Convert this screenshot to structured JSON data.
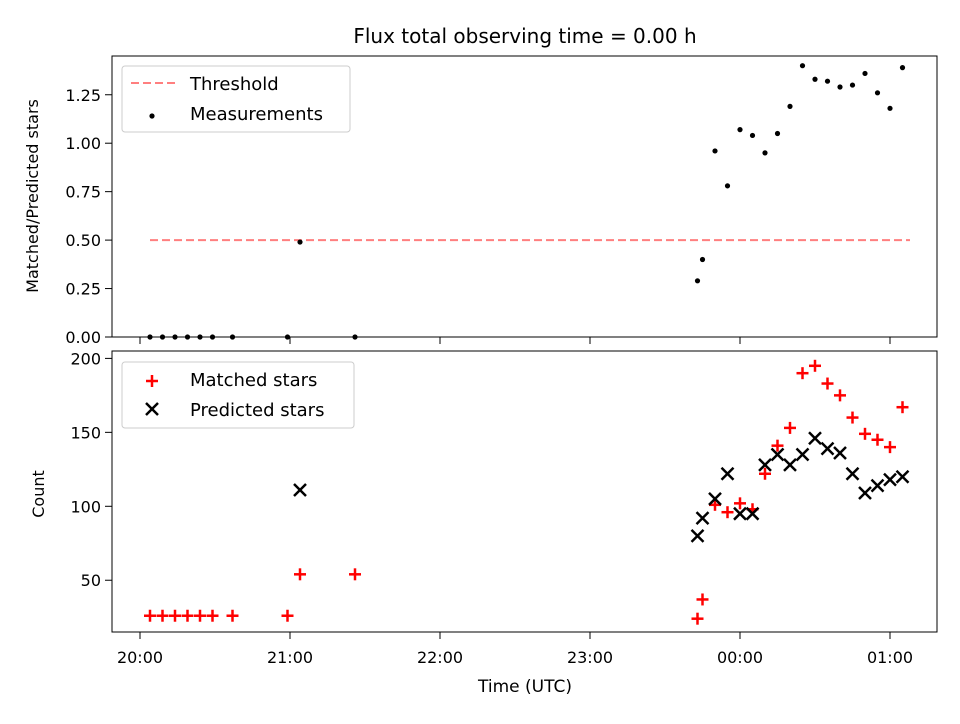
{
  "chart_data": {
    "type": "scatter",
    "title": "Flux total observing time = 0.00 h",
    "xlabel": "Time (UTC)",
    "x_ticks": [
      "20:00",
      "21:00",
      "22:00",
      "23:00",
      "00:00",
      "01:00"
    ],
    "panels": [
      {
        "ylabel": "Matched/Predicted stars",
        "ylim": [
          0,
          1.45
        ],
        "y_ticks": [
          "0.00",
          "0.25",
          "0.50",
          "0.75",
          "1.00",
          "1.25"
        ],
        "legend_position": "upper-left",
        "threshold": {
          "name": "Threshold",
          "value": 0.5,
          "x_range": [
            "20:04",
            "01:08"
          ],
          "color": "#ff7f7f"
        },
        "series": [
          {
            "name": "Measurements",
            "marker": "dot",
            "color": "#000000",
            "points": [
              {
                "x": "20:04",
                "y": 0.0
              },
              {
                "x": "20:09",
                "y": 0.0
              },
              {
                "x": "20:14",
                "y": 0.0
              },
              {
                "x": "20:19",
                "y": 0.0
              },
              {
                "x": "20:24",
                "y": 0.0
              },
              {
                "x": "20:29",
                "y": 0.0
              },
              {
                "x": "20:37",
                "y": 0.0
              },
              {
                "x": "20:59",
                "y": 0.0
              },
              {
                "x": "21:04",
                "y": 0.49
              },
              {
                "x": "21:26",
                "y": 0.0
              },
              {
                "x": "23:43",
                "y": 0.29
              },
              {
                "x": "23:45",
                "y": 0.4
              },
              {
                "x": "23:50",
                "y": 0.96
              },
              {
                "x": "23:55",
                "y": 0.78
              },
              {
                "x": "00:00",
                "y": 1.07
              },
              {
                "x": "00:05",
                "y": 1.04
              },
              {
                "x": "00:10",
                "y": 0.95
              },
              {
                "x": "00:15",
                "y": 1.05
              },
              {
                "x": "00:20",
                "y": 1.19
              },
              {
                "x": "00:25",
                "y": 1.4
              },
              {
                "x": "00:30",
                "y": 1.33
              },
              {
                "x": "00:35",
                "y": 1.32
              },
              {
                "x": "00:40",
                "y": 1.29
              },
              {
                "x": "00:45",
                "y": 1.3
              },
              {
                "x": "00:50",
                "y": 1.36
              },
              {
                "x": "00:55",
                "y": 1.26
              },
              {
                "x": "01:00",
                "y": 1.18
              },
              {
                "x": "01:05",
                "y": 1.39
              }
            ]
          }
        ]
      },
      {
        "ylabel": "Count",
        "ylim": [
          15,
          205
        ],
        "y_ticks": [
          "50",
          "100",
          "150",
          "200"
        ],
        "legend_position": "upper-left",
        "series": [
          {
            "name": "Matched stars",
            "marker": "plus",
            "color": "#ff0000",
            "points": [
              {
                "x": "20:04",
                "y": 26
              },
              {
                "x": "20:09",
                "y": 26
              },
              {
                "x": "20:14",
                "y": 26
              },
              {
                "x": "20:19",
                "y": 26
              },
              {
                "x": "20:24",
                "y": 26
              },
              {
                "x": "20:29",
                "y": 26
              },
              {
                "x": "20:37",
                "y": 26
              },
              {
                "x": "20:59",
                "y": 26
              },
              {
                "x": "21:04",
                "y": 54
              },
              {
                "x": "21:26",
                "y": 54
              },
              {
                "x": "23:43",
                "y": 24
              },
              {
                "x": "23:45",
                "y": 37
              },
              {
                "x": "23:50",
                "y": 101
              },
              {
                "x": "23:55",
                "y": 96
              },
              {
                "x": "00:00",
                "y": 102
              },
              {
                "x": "00:05",
                "y": 98
              },
              {
                "x": "00:10",
                "y": 122
              },
              {
                "x": "00:15",
                "y": 141
              },
              {
                "x": "00:20",
                "y": 153
              },
              {
                "x": "00:25",
                "y": 190
              },
              {
                "x": "00:30",
                "y": 195
              },
              {
                "x": "00:35",
                "y": 183
              },
              {
                "x": "00:40",
                "y": 175
              },
              {
                "x": "00:45",
                "y": 160
              },
              {
                "x": "00:50",
                "y": 149
              },
              {
                "x": "00:55",
                "y": 145
              },
              {
                "x": "01:00",
                "y": 140
              },
              {
                "x": "01:05",
                "y": 167
              }
            ]
          },
          {
            "name": "Predicted stars",
            "marker": "x",
            "color": "#000000",
            "points": [
              {
                "x": "21:04",
                "y": 111
              },
              {
                "x": "23:43",
                "y": 80
              },
              {
                "x": "23:45",
                "y": 92
              },
              {
                "x": "23:50",
                "y": 105
              },
              {
                "x": "23:55",
                "y": 122
              },
              {
                "x": "00:00",
                "y": 95
              },
              {
                "x": "00:05",
                "y": 95
              },
              {
                "x": "00:10",
                "y": 128
              },
              {
                "x": "00:15",
                "y": 135
              },
              {
                "x": "00:20",
                "y": 128
              },
              {
                "x": "00:25",
                "y": 135
              },
              {
                "x": "00:30",
                "y": 146
              },
              {
                "x": "00:35",
                "y": 139
              },
              {
                "x": "00:40",
                "y": 136
              },
              {
                "x": "00:45",
                "y": 122
              },
              {
                "x": "00:50",
                "y": 109
              },
              {
                "x": "00:55",
                "y": 114
              },
              {
                "x": "01:00",
                "y": 118
              },
              {
                "x": "01:05",
                "y": 120
              }
            ]
          }
        ]
      }
    ]
  }
}
